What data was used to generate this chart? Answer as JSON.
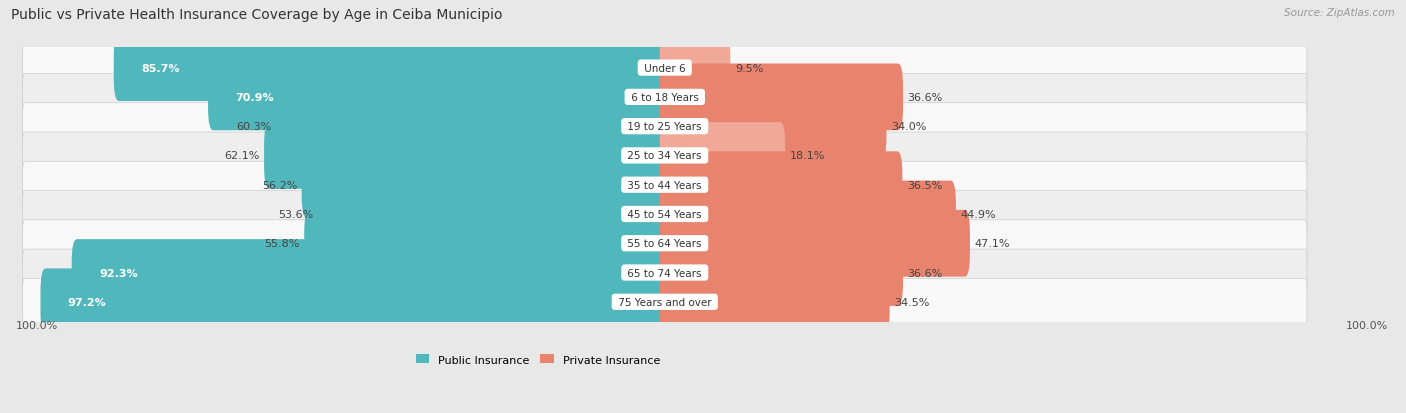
{
  "title": "Public vs Private Health Insurance Coverage by Age in Ceiba Municipio",
  "source": "Source: ZipAtlas.com",
  "categories": [
    "Under 6",
    "6 to 18 Years",
    "19 to 25 Years",
    "25 to 34 Years",
    "35 to 44 Years",
    "45 to 54 Years",
    "55 to 64 Years",
    "65 to 74 Years",
    "75 Years and over"
  ],
  "public_values": [
    85.7,
    70.9,
    60.3,
    62.1,
    56.2,
    53.6,
    55.8,
    92.3,
    97.2
  ],
  "private_values": [
    9.5,
    36.6,
    34.0,
    18.1,
    36.5,
    44.9,
    47.1,
    36.6,
    34.5
  ],
  "public_color": "#50b8bc",
  "private_color": "#e8836e",
  "private_color_light": "#f0a898",
  "public_label": "Public Insurance",
  "private_label": "Private Insurance",
  "bg_color": "#e8e8e8",
  "row_colors": [
    "#f8f8f8",
    "#eeeeee"
  ],
  "axis_label_left": "100.0%",
  "axis_label_right": "100.0%",
  "max_value": 100.0,
  "title_fontsize": 10,
  "source_fontsize": 7.5,
  "label_fontsize": 8,
  "bar_value_fontsize": 8,
  "category_fontsize": 7.5
}
